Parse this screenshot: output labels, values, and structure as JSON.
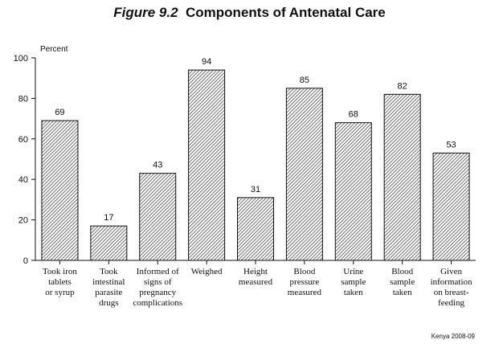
{
  "figure": {
    "number": "Figure 9.2",
    "title": "Components of Antenatal Care",
    "source": "Kenya 2008-09"
  },
  "chart_data": {
    "type": "bar",
    "title": "Components of Antenatal Care",
    "ylabel": "Percent",
    "xlabel": "",
    "ylim": [
      0,
      100
    ],
    "yticks": [
      0,
      20,
      40,
      60,
      80,
      100
    ],
    "grid": false,
    "bar_fill": "diagonal-hatch",
    "categories": [
      [
        "Took iron",
        "tablets",
        "or syrup"
      ],
      [
        "Took",
        "intestinal",
        "parasite",
        "drugs"
      ],
      [
        "Informed of",
        "signs of",
        "pregnancy",
        "complications"
      ],
      [
        "Weighed"
      ],
      [
        "Height",
        "measured"
      ],
      [
        "Blood",
        "pressure",
        "measured"
      ],
      [
        "Urine",
        "sample",
        "taken"
      ],
      [
        "Blood",
        "sample",
        "taken"
      ],
      [
        "Given",
        "information",
        "on breast-",
        "feeding"
      ]
    ],
    "values": [
      69,
      17,
      43,
      94,
      31,
      85,
      68,
      82,
      53
    ]
  }
}
